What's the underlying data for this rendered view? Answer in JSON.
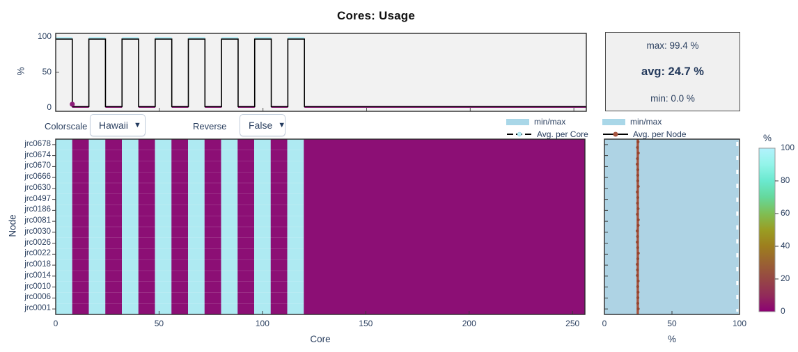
{
  "title": "Cores: Usage",
  "controls": {
    "colorscale_label": "Colorscale",
    "colorscale_value": "Hawaii",
    "reverse_label": "Reverse",
    "reverse_value": "False",
    "dropdown_arrow": "▼"
  },
  "stats": {
    "max": "max: 99.4 %",
    "avg": "avg: 24.7 %",
    "min": "min: 0.0 %"
  },
  "legend_core": {
    "band_label": "min/max",
    "line_label": "Avg. per Core"
  },
  "legend_node": {
    "band_label": "min/max",
    "line_label": "Avg. per Node"
  },
  "colors": {
    "plot_bg": "#f2f2f2",
    "frame": "#2a2a2a",
    "band_legend_blue": "#a9d7e8",
    "node_band_blue": "#aed3e4",
    "core_strip_cyan": "#b8eef6",
    "heat_high_cyan": "#aeeaf2",
    "heat_low_magenta": "#8c0f75",
    "avg_core_line": "#000000",
    "avg_core_marker_low": "#8c1b78",
    "avg_core_marker_high": "#b8eef6",
    "avg_node_line": "#a6543f",
    "avg_node_marker": "#96452f",
    "text": "#2a3f5f"
  },
  "chart_data": [
    {
      "name": "avg-per-core-line",
      "type": "line",
      "ylabel": "%",
      "yticks": [
        0,
        50,
        100
      ],
      "ylim": [
        -5,
        105
      ],
      "xlim": [
        0,
        256
      ],
      "xticks_minor": [
        50,
        100,
        150,
        200,
        250
      ],
      "high_value": 97,
      "low_value": 1.5,
      "band_max": 100,
      "band_min": 0,
      "high_segments": [
        [
          0,
          8
        ],
        [
          16,
          24
        ],
        [
          32,
          40
        ],
        [
          48,
          56
        ],
        [
          64,
          72
        ],
        [
          80,
          88
        ],
        [
          96,
          104
        ],
        [
          112,
          120
        ]
      ],
      "low_segments": [
        [
          8,
          16
        ],
        [
          24,
          32
        ],
        [
          40,
          48
        ],
        [
          56,
          64
        ],
        [
          72,
          80
        ],
        [
          88,
          96
        ],
        [
          104,
          112
        ],
        [
          120,
          256
        ]
      ],
      "transition_marker": {
        "x": 8,
        "y": 5
      }
    },
    {
      "name": "core-usage-heatmap",
      "type": "heatmap",
      "xlabel": "Core",
      "ylabel": "Node",
      "xticks": [
        0,
        50,
        100,
        150,
        200,
        250
      ],
      "xlim": [
        0,
        256
      ],
      "y_categories": [
        "jrc0678",
        "jrc0674",
        "jrc0670",
        "jrc0666",
        "jrc0630",
        "jrc0497",
        "jrc0186",
        "jrc0081",
        "jrc0030",
        "jrc0026",
        "jrc0022",
        "jrc0018",
        "jrc0014",
        "jrc0010",
        "jrc0006",
        "jrc0001"
      ],
      "high_core_ranges": [
        [
          0,
          8
        ],
        [
          16,
          24
        ],
        [
          32,
          40
        ],
        [
          48,
          56
        ],
        [
          64,
          72
        ],
        [
          80,
          88
        ],
        [
          96,
          104
        ],
        [
          112,
          120
        ]
      ],
      "high_pct": 97,
      "low_pct": 1,
      "zlim": [
        0,
        100
      ]
    },
    {
      "name": "per-node-minmax",
      "type": "area",
      "xlabel": "%",
      "xticks": [
        0,
        50,
        100
      ],
      "xlim": [
        0,
        100
      ],
      "band_min": 0,
      "band_max": 99.4,
      "avg": 24.7,
      "n_nodes": 16
    },
    {
      "name": "colorbar",
      "type": "colorbar",
      "title": "%",
      "ticks": [
        0,
        20,
        40,
        60,
        80,
        100
      ],
      "colorscale_name": "Hawaii",
      "gradient": [
        [
          0.0,
          "#8C0273"
        ],
        [
          0.1,
          "#922B59"
        ],
        [
          0.2,
          "#964744"
        ],
        [
          0.3,
          "#9A6232"
        ],
        [
          0.4,
          "#9D7E1E"
        ],
        [
          0.5,
          "#9A9D23"
        ],
        [
          0.6,
          "#7FBE54"
        ],
        [
          0.7,
          "#65D89B"
        ],
        [
          0.8,
          "#6AE9CF"
        ],
        [
          0.9,
          "#93F4E9"
        ],
        [
          1.0,
          "#B3F2FD"
        ]
      ]
    }
  ]
}
